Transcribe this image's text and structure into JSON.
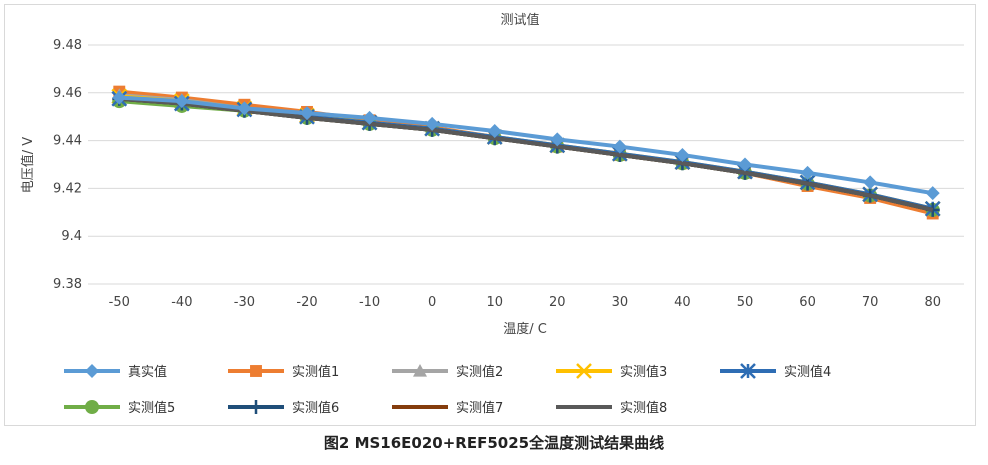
{
  "chart_data": {
    "type": "line",
    "title": "测试值",
    "xlabel": "温度/ C",
    "ylabel": "电压值/ V",
    "ylim": [
      9.38,
      9.48
    ],
    "yticks": [
      "9.48",
      "9.46",
      "9.44",
      "9.42",
      "9.4",
      "9.38"
    ],
    "ytick_values": [
      9.48,
      9.46,
      9.44,
      9.42,
      9.4,
      9.38
    ],
    "categories": [
      "-50",
      "-40",
      "-30",
      "-20",
      "-10",
      "0",
      "10",
      "20",
      "30",
      "40",
      "50",
      "60",
      "70",
      "80"
    ],
    "grid": true,
    "legend_position": "bottom",
    "series": [
      {
        "name": "真实值",
        "color": "#5b9bd5",
        "marker": "diamond",
        "values": [
          9.458,
          9.4565,
          9.4535,
          9.4515,
          9.4495,
          9.447,
          9.444,
          9.4405,
          9.4375,
          9.434,
          9.43,
          9.4265,
          9.4225,
          9.418
        ]
      },
      {
        "name": "实测值1",
        "color": "#ed7d31",
        "marker": "square",
        "values": [
          9.4605,
          9.458,
          9.455,
          9.452,
          9.4485,
          9.4455,
          9.4415,
          9.4375,
          9.434,
          9.4305,
          9.4265,
          9.421,
          9.416,
          9.4095
        ]
      },
      {
        "name": "实测值2",
        "color": "#a5a5a5",
        "marker": "triangle",
        "values": [
          9.459,
          9.457,
          9.4535,
          9.4505,
          9.4475,
          9.445,
          9.4415,
          9.438,
          9.4345,
          9.4305,
          9.4265,
          9.422,
          9.417,
          9.411
        ]
      },
      {
        "name": "实测值3",
        "color": "#ffc000",
        "marker": "x",
        "values": [
          9.4585,
          9.4565,
          9.4535,
          9.4505,
          9.4475,
          9.445,
          9.4415,
          9.438,
          9.4345,
          9.431,
          9.427,
          9.4225,
          9.4175,
          9.4115
        ]
      },
      {
        "name": "实测值4",
        "color": "#2e6db4",
        "marker": "star",
        "values": [
          9.4575,
          9.4555,
          9.453,
          9.45,
          9.4475,
          9.445,
          9.4415,
          9.438,
          9.4345,
          9.431,
          9.427,
          9.4225,
          9.4175,
          9.4115
        ]
      },
      {
        "name": "实测值5",
        "color": "#70ad47",
        "marker": "circle",
        "values": [
          9.4565,
          9.4545,
          9.4525,
          9.4495,
          9.447,
          9.4445,
          9.441,
          9.4375,
          9.434,
          9.4305,
          9.4265,
          9.422,
          9.417,
          9.411
        ]
      },
      {
        "name": "实测值6",
        "color": "#1f4e79",
        "marker": "plus",
        "values": [
          9.4575,
          9.4555,
          9.4525,
          9.4495,
          9.447,
          9.4445,
          9.441,
          9.4375,
          9.434,
          9.4305,
          9.4265,
          9.422,
          9.417,
          9.411
        ]
      },
      {
        "name": "实测值7",
        "color": "#843c0c",
        "marker": "none",
        "values": [
          9.4575,
          9.4555,
          9.4525,
          9.4495,
          9.447,
          9.4445,
          9.441,
          9.4375,
          9.434,
          9.4305,
          9.4265,
          9.422,
          9.417,
          9.411
        ]
      },
      {
        "name": "实测值8",
        "color": "#595959",
        "marker": "none",
        "values": [
          9.4575,
          9.4555,
          9.4525,
          9.4495,
          9.447,
          9.4445,
          9.441,
          9.4375,
          9.434,
          9.4305,
          9.4265,
          9.422,
          9.417,
          9.411
        ]
      }
    ]
  },
  "caption": "图2   MS16E020+REF5025全温度测试结果曲线"
}
